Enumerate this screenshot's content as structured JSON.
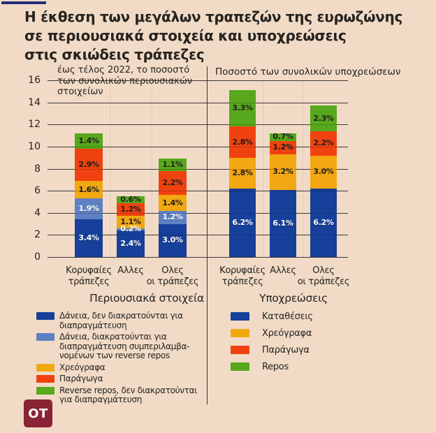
{
  "page": {
    "title_lines": [
      "Η έκθεση των μεγάλων τραπεζών της ευρωζώνης",
      "σε περιουσιακά στοιχεία και υποχρεώσεις",
      "στις σκιώδεις τράπεζες"
    ],
    "background_color": "#f1dbc7",
    "accent_color": "#252e7c",
    "gridline_color": "#4a4540",
    "divider_color": "#39342e"
  },
  "chart_data": [
    {
      "type": "bar",
      "stacked": true,
      "panel": "assets",
      "subtitle": "έως τέλος 2022, το ποσοστό των συνολικών περιουσιακών στοιχείων",
      "subtitle_lines": [
        "έως τέλος 2022, το ποσοστό",
        "των συνολικών περιουσιακών",
        "στοιχείων"
      ],
      "caption": "Περιουσιακά στοιχεία",
      "categories": [
        "Κορυφαίες τράπεζες",
        "Αλλες",
        "Ολες οι τράπεζες"
      ],
      "category_lines": [
        [
          "Κορυφαίες",
          "τράπεζες"
        ],
        [
          "Αλλες"
        ],
        [
          "Ολες",
          "οι τράπεζες"
        ]
      ],
      "ylim": [
        0,
        16
      ],
      "yticks": [
        0,
        2,
        4,
        6,
        8,
        10,
        12,
        14,
        16
      ],
      "grid": true,
      "series": [
        {
          "name": "Δάνεια, δεν διακρατούνται για διαπραγμάτευση",
          "color": "#16409a",
          "label_color": "#ffffff",
          "values": [
            3.4,
            2.4,
            3.0
          ]
        },
        {
          "name": "Δάνεια, διακρατούνται για διαπραγμάτευση συμπεριλαμβανομένων των reverse repos",
          "color": "#5f80c3",
          "label_color": "#ffffff",
          "values": [
            1.9,
            0.2,
            1.2
          ]
        },
        {
          "name": "Χρεόγραφα",
          "color": "#f2a811",
          "label_color": "#1f1d1a",
          "values": [
            1.6,
            1.1,
            1.4
          ]
        },
        {
          "name": "Παράγωγα",
          "color": "#f04210",
          "label_color": "#1f1d1a",
          "values": [
            2.9,
            1.2,
            2.2
          ]
        },
        {
          "name": "Reverse repos, δεν διακρατούνται για διαπραγμάτευση",
          "color": "#58a81d",
          "label_color": "#1f1d1a",
          "values": [
            1.4,
            0.6,
            1.1
          ]
        }
      ]
    },
    {
      "type": "bar",
      "stacked": true,
      "panel": "liabilities",
      "subtitle": "Ποσοστό των συνολικών υποχρεώσεων",
      "caption": "Υποχρεώσεις",
      "categories": [
        "Κορυφαίες τράπεζες",
        "Αλλες",
        "Ολες οι τράπεζες"
      ],
      "category_lines": [
        [
          "Κορυφαίες",
          "τράπεζες"
        ],
        [
          "Αλλες"
        ],
        [
          "Ολες",
          "οι τράπεζες"
        ]
      ],
      "ylim": [
        0,
        16
      ],
      "yticks": [
        0,
        2,
        4,
        6,
        8,
        10,
        12,
        14,
        16
      ],
      "grid": true,
      "series": [
        {
          "name": "Καταθέσεις",
          "color": "#16409a",
          "label_color": "#ffffff",
          "values": [
            6.2,
            6.1,
            6.2
          ]
        },
        {
          "name": "Χρεόγραφα",
          "color": "#f2a811",
          "label_color": "#1f1d1a",
          "values": [
            2.8,
            3.2,
            3.0
          ]
        },
        {
          "name": "Παράγωγα",
          "color": "#f04210",
          "label_color": "#1f1d1a",
          "values": [
            2.8,
            1.2,
            2.2
          ]
        },
        {
          "name": "Repos",
          "color": "#58a81d",
          "label_color": "#1f1d1a",
          "values": [
            3.3,
            0.7,
            2.3
          ]
        }
      ]
    }
  ],
  "legend_left": {
    "items": [
      {
        "color": "#16409a",
        "lines": [
          "Δάνεια, δεν διακρατούνται για",
          "διαπραγμάτευση"
        ]
      },
      {
        "color": "#5f80c3",
        "lines": [
          "Δάνεια, διακρατούνται για",
          "διαπραγμάτευση συμπεριλαμβα-",
          "νομένων των reverse repos"
        ]
      },
      {
        "color": "#f2a811",
        "lines": [
          "Χρεόγραφα"
        ]
      },
      {
        "color": "#f04210",
        "lines": [
          "Παράγωγα"
        ]
      },
      {
        "color": "#58a81d",
        "lines": [
          "Reverse repos, δεν διακρατούνται",
          "για διαπραγμάτευση"
        ]
      }
    ]
  },
  "legend_right": {
    "items": [
      {
        "color": "#16409a",
        "label": "Καταθέσεις"
      },
      {
        "color": "#f2a811",
        "label": "Χρεόγραφα"
      },
      {
        "color": "#f04210",
        "label": "Παράγωγα"
      },
      {
        "color": "#58a81d",
        "label": "Repos"
      }
    ]
  },
  "logo": {
    "text": "OT",
    "bg": "#8a2434"
  }
}
